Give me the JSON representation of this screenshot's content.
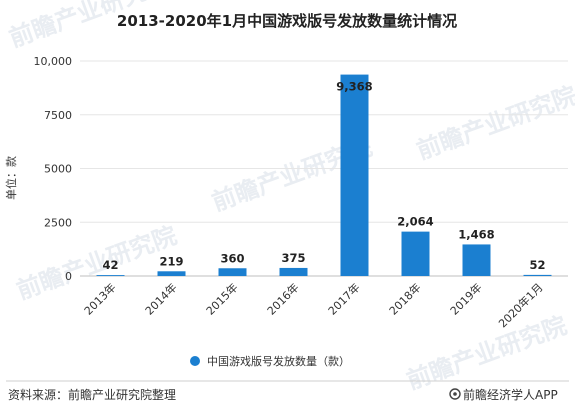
{
  "chart_data": {
    "type": "bar",
    "title": "2013-2020年1月中国游戏版号发放数量统计情况",
    "ylabel": "单位：款",
    "xlabel": "",
    "categories": [
      "2013年",
      "2014年",
      "2015年",
      "2016年",
      "2017年",
      "2018年",
      "2019年",
      "2020年1月"
    ],
    "series": [
      {
        "name": "中国游戏版号发放数量（款）",
        "values": [
          42,
          219,
          360,
          375,
          9368,
          2064,
          1468,
          52
        ],
        "value_labels": [
          "42",
          "219",
          "360",
          "375",
          "9,368",
          "2,064",
          "1,468",
          "52"
        ],
        "color": "#1b7fd0"
      }
    ],
    "ylim": [
      0,
      10000
    ],
    "yticks": [
      0,
      2500,
      5000,
      7500,
      10000
    ],
    "ytick_labels": [
      "0",
      "2500",
      "5000",
      "7500",
      "10,000"
    ],
    "grid": true,
    "legend_position": "bottom"
  },
  "footer": {
    "source": "资料来源：前瞻产业研究院整理",
    "brand": "前瞻经济学人APP"
  }
}
